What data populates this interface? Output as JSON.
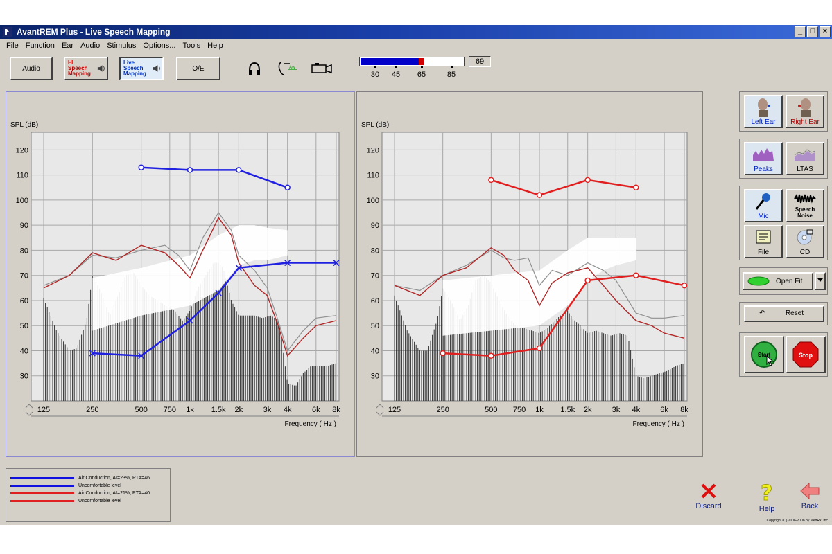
{
  "window": {
    "title": "AvantREM Plus - Live Speech Mapping",
    "controls": [
      "_",
      "□",
      "×"
    ]
  },
  "menu": [
    "File",
    "Function",
    "Ear",
    "Audio",
    "Stimulus",
    "Options...",
    "Tools",
    "Help"
  ],
  "toolbar": {
    "audio_label": "Audio",
    "hl_line1": "HL",
    "hl_line2": "Speech",
    "hl_line3": "Mapping",
    "live_line1": "Live",
    "live_line2": "Speech",
    "live_line3": "Mapping",
    "oe_label": "O/E",
    "level_value": "69",
    "level_fraction": 0.61,
    "level_ticks": [
      "30",
      "45",
      "65",
      "85"
    ],
    "icons": [
      "headphones-icon",
      "ear-probe-icon",
      "camera-icon"
    ]
  },
  "chart_data": [
    {
      "type": "line",
      "panel": "left",
      "ylabel": "SPL (dB)",
      "xlabel": "Frequency ( Hz )",
      "ylim": [
        20,
        127
      ],
      "yticks": [
        30,
        40,
        50,
        60,
        70,
        80,
        90,
        100,
        110,
        120
      ],
      "xticks": [
        {
          "hz": 125,
          "label": "125"
        },
        {
          "hz": 250,
          "label": "250"
        },
        {
          "hz": 500,
          "label": "500"
        },
        {
          "hz": 750,
          "label": "750"
        },
        {
          "hz": 1000,
          "label": "1k"
        },
        {
          "hz": 1500,
          "label": "1.5k"
        },
        {
          "hz": 2000,
          "label": "2k"
        },
        {
          "hz": 3000,
          "label": "3k"
        },
        {
          "hz": 4000,
          "label": "4k"
        },
        {
          "hz": 6000,
          "label": "6k"
        },
        {
          "hz": 8000,
          "label": "8k"
        }
      ],
      "uncomfortable_level": {
        "color": "#2020e0",
        "marker": "o",
        "x": [
          500,
          1000,
          2000,
          4000
        ],
        "y": [
          113,
          112,
          112,
          105
        ]
      },
      "air_conduction": {
        "color": "#2020e0",
        "marker": "x",
        "x": [
          250,
          500,
          1000,
          1500,
          2000,
          4000,
          8000
        ],
        "y": [
          39,
          38,
          52,
          63,
          73,
          75,
          75
        ]
      },
      "envelope_upper": {
        "x": [
          250,
          500,
          1000,
          1500,
          2000,
          2500,
          3000,
          4000
        ],
        "y": [
          69,
          73,
          78,
          86,
          90,
          90,
          89,
          88
        ]
      },
      "envelope_lower": {
        "x": [
          250,
          500,
          1000,
          1500,
          2000,
          2500,
          3000,
          4000
        ],
        "y": [
          48,
          54,
          58,
          64,
          74,
          76,
          76,
          78
        ]
      },
      "peak_curve_red": {
        "x": [
          125,
          180,
          250,
          350,
          500,
          700,
          850,
          1000,
          1200,
          1500,
          1800,
          2000,
          2500,
          3000,
          3500,
          4000,
          5000,
          6000,
          8000
        ],
        "y": [
          65,
          70,
          79,
          76,
          82,
          79,
          74,
          69,
          80,
          93,
          86,
          75,
          66,
          62,
          50,
          38,
          45,
          50,
          52
        ]
      },
      "peak_curve_gray": {
        "x": [
          125,
          180,
          250,
          350,
          500,
          700,
          850,
          1000,
          1200,
          1500,
          1800,
          2000,
          2500,
          3000,
          3500,
          4000,
          5000,
          6000,
          8000
        ],
        "y": [
          66,
          70,
          78,
          77,
          80,
          82,
          78,
          72,
          85,
          95,
          88,
          78,
          72,
          65,
          52,
          40,
          48,
          53,
          54
        ]
      },
      "spectrum": {
        "x": [
          125,
          150,
          180,
          200,
          230,
          250,
          280,
          320,
          360,
          400,
          450,
          500,
          560,
          630,
          710,
          800,
          900,
          1000,
          1120,
          1250,
          1400,
          1500,
          1600,
          1800,
          2000,
          2250,
          2500,
          2800,
          3150,
          3550,
          4000,
          4500,
          5000,
          5600,
          6300,
          7100,
          8000
        ],
        "y": [
          61,
          48,
          40,
          41,
          52,
          70,
          64,
          54,
          62,
          70,
          71,
          66,
          62,
          60,
          58,
          56,
          52,
          56,
          65,
          70,
          75,
          75,
          73,
          60,
          54,
          54,
          54,
          53,
          54,
          52,
          27,
          26,
          31,
          34,
          34,
          34,
          35
        ]
      }
    },
    {
      "type": "line",
      "panel": "right",
      "ylabel": "SPL (dB)",
      "xlabel": "Frequency ( Hz )",
      "ylim": [
        20,
        127
      ],
      "yticks": [
        30,
        40,
        50,
        60,
        70,
        80,
        90,
        100,
        110,
        120
      ],
      "xticks": [
        {
          "hz": 125,
          "label": "125"
        },
        {
          "hz": 250,
          "label": "250"
        },
        {
          "hz": 500,
          "label": "500"
        },
        {
          "hz": 750,
          "label": "750"
        },
        {
          "hz": 1000,
          "label": "1k"
        },
        {
          "hz": 1500,
          "label": "1.5k"
        },
        {
          "hz": 2000,
          "label": "2k"
        },
        {
          "hz": 3000,
          "label": "3k"
        },
        {
          "hz": 4000,
          "label": "4k"
        },
        {
          "hz": 6000,
          "label": "6k"
        },
        {
          "hz": 8000,
          "label": "8k"
        }
      ],
      "uncomfortable_level": {
        "color": "#e02020",
        "marker": "o",
        "x": [
          500,
          1000,
          2000,
          4000
        ],
        "y": [
          108,
          102,
          108,
          105
        ]
      },
      "air_conduction": {
        "color": "#e02020",
        "marker": "o",
        "x": [
          250,
          500,
          1000,
          2000,
          4000,
          8000
        ],
        "y": [
          39,
          38,
          41,
          68,
          70,
          66
        ]
      },
      "envelope_upper": {
        "x": [
          250,
          500,
          1000,
          1500,
          2000,
          2500,
          3000,
          4000
        ],
        "y": [
          68,
          70,
          72,
          80,
          85,
          85,
          85,
          85
        ]
      },
      "envelope_lower": {
        "x": [
          250,
          500,
          1000,
          1500,
          2000,
          2500,
          3000,
          4000
        ],
        "y": [
          46,
          48,
          50,
          58,
          68,
          72,
          74,
          76
        ]
      },
      "peak_curve_red": {
        "x": [
          125,
          180,
          250,
          350,
          500,
          600,
          700,
          850,
          1000,
          1200,
          1500,
          2000,
          2500,
          3000,
          4000,
          5000,
          6000,
          8000
        ],
        "y": [
          66,
          62,
          70,
          73,
          81,
          78,
          72,
          68,
          58,
          67,
          71,
          73,
          66,
          60,
          52,
          50,
          47,
          45
        ]
      },
      "peak_curve_gray": {
        "x": [
          125,
          180,
          250,
          350,
          500,
          600,
          700,
          850,
          1000,
          1200,
          1500,
          2000,
          2500,
          3000,
          4000,
          5000,
          6000,
          8000
        ],
        "y": [
          66,
          64,
          70,
          74,
          80,
          77,
          76,
          77,
          66,
          72,
          70,
          75,
          72,
          68,
          55,
          53,
          53,
          54
        ]
      },
      "spectrum": {
        "x": [
          125,
          150,
          180,
          200,
          230,
          250,
          280,
          320,
          360,
          400,
          450,
          500,
          560,
          630,
          710,
          800,
          900,
          1000,
          1120,
          1250,
          1400,
          1500,
          1600,
          1800,
          2000,
          2250,
          2500,
          2800,
          3150,
          3550,
          4000,
          4500,
          5000,
          5600,
          6300,
          7100,
          8000
        ],
        "y": [
          62,
          48,
          40,
          40,
          52,
          65,
          60,
          52,
          58,
          68,
          70,
          67,
          60,
          54,
          50,
          49,
          48,
          47,
          49,
          52,
          55,
          56,
          53,
          50,
          47,
          48,
          47,
          46,
          47,
          46,
          30,
          29,
          30,
          31,
          32,
          34,
          35
        ]
      }
    }
  ],
  "legend": [
    {
      "label": "Air Conduction, AI=23%, PTA=46",
      "color": "#1010e0"
    },
    {
      "label": "Uncomfortable level",
      "color": "#1010e0"
    },
    {
      "label": "Air Conduction, AI=21%, PTA=40",
      "color": "#e02020"
    },
    {
      "label": "Uncomfortable level",
      "color": "#e02020"
    }
  ],
  "side": {
    "left_ear": "Left Ear",
    "right_ear": "Right Ear",
    "peaks": "Peaks",
    "ltas": "LTAS",
    "mic": "Mic",
    "speech_noise_1": "Speech",
    "speech_noise_2": "Noise",
    "file": "File",
    "cd": "CD",
    "open_fit": "Open Fit",
    "reset": "Reset",
    "start": "Start",
    "stop": "Stop"
  },
  "footer": {
    "discard": "Discard",
    "help": "Help",
    "back": "Back",
    "copyright": "Copyright (C) 2006-2008 by MedRx, Inc"
  }
}
